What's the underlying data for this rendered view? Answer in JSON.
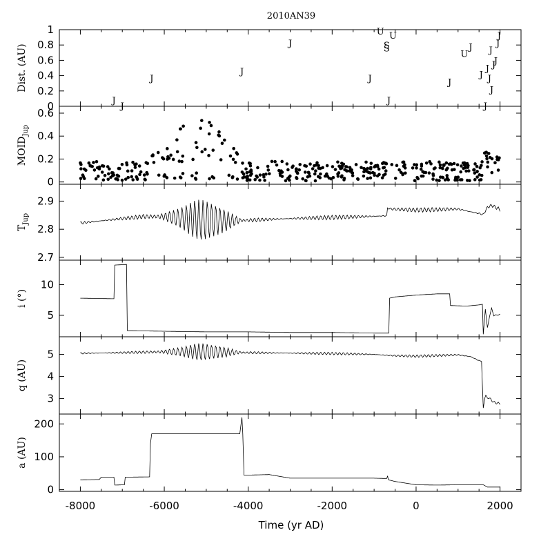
{
  "chart_data": {
    "type": "line",
    "title": "2010AN39",
    "xlabel": "Time (yr AD)",
    "xlim": [
      -8500,
      2500
    ],
    "xticks": [
      -8000,
      -6000,
      -4000,
      -2000,
      0,
      2000
    ],
    "xtick_labels": [
      "-8000",
      "-6000",
      "-4000",
      "-2000",
      "0",
      "2000"
    ],
    "panels": [
      {
        "id": "dist",
        "type": "scatter",
        "ylabel": "Dist. (AU)",
        "ylim": [
          0,
          1
        ],
        "yticks": [
          0,
          0.2,
          0.4,
          0.6,
          0.8,
          1
        ],
        "ytick_labels": [
          "0",
          "0.2",
          "0.4",
          "0.6",
          "0.8",
          "1"
        ],
        "marker_legend": "letter marks planet encountered",
        "points": [
          {
            "x": -7200,
            "y": 0.08,
            "label": "J"
          },
          {
            "x": -7000,
            "y": 0.01,
            "label": "J"
          },
          {
            "x": -6300,
            "y": 0.37,
            "label": "J"
          },
          {
            "x": -4150,
            "y": 0.46,
            "label": "J"
          },
          {
            "x": -3000,
            "y": 0.83,
            "label": "J"
          },
          {
            "x": -1100,
            "y": 0.37,
            "label": "J"
          },
          {
            "x": -850,
            "y": 0.98,
            "label": "U"
          },
          {
            "x": -700,
            "y": 0.8,
            "label": "S"
          },
          {
            "x": -700,
            "y": 0.76,
            "label": "S"
          },
          {
            "x": -550,
            "y": 0.93,
            "label": "U"
          },
          {
            "x": -650,
            "y": 0.08,
            "label": "J"
          },
          {
            "x": 800,
            "y": 0.32,
            "label": "J"
          },
          {
            "x": 1150,
            "y": 0.69,
            "label": "U"
          },
          {
            "x": 1300,
            "y": 0.78,
            "label": "J"
          },
          {
            "x": 1550,
            "y": 0.42,
            "label": "J"
          },
          {
            "x": 1650,
            "y": 0.01,
            "label": "J"
          },
          {
            "x": 1700,
            "y": 0.5,
            "label": "J"
          },
          {
            "x": 1750,
            "y": 0.37,
            "label": "J"
          },
          {
            "x": 1780,
            "y": 0.74,
            "label": "J"
          },
          {
            "x": 1800,
            "y": 0.22,
            "label": "J"
          },
          {
            "x": 1850,
            "y": 0.55,
            "label": "J"
          },
          {
            "x": 1900,
            "y": 0.6,
            "label": "J"
          },
          {
            "x": 1950,
            "y": 0.83,
            "label": "J"
          },
          {
            "x": 1980,
            "y": 0.93,
            "label": "J"
          }
        ]
      },
      {
        "id": "moid",
        "type": "scatter",
        "ylabel": "MOID",
        "ylabel_sub": "Jup",
        "ylim": [
          -0.02,
          0.66
        ],
        "yticks": [
          0,
          0.2,
          0.4,
          0.6
        ],
        "ytick_labels": [
          "0",
          "0.2",
          "0.4",
          "0.6"
        ],
        "x_range": [
          -8000,
          2000
        ],
        "dot_count": 420,
        "seed": 7
      },
      {
        "id": "tjup",
        "type": "line",
        "ylabel": "T",
        "ylabel_sub": "Jup",
        "ylim": [
          2.69,
          2.96
        ],
        "yticks": [
          2.7,
          2.8,
          2.9
        ],
        "ytick_labels": [
          "2.7",
          "2.8",
          "2.9"
        ],
        "x": [
          -8000,
          -7500,
          -7000,
          -6500,
          -6000,
          -5500,
          -5000,
          -4500,
          -4000,
          -3500,
          -3000,
          -2500,
          -2000,
          -1500,
          -1000,
          -700,
          -690,
          -680,
          -600,
          0,
          500,
          1000,
          1300,
          1500,
          1600,
          1700,
          1800,
          2000
        ],
        "y": [
          2.822,
          2.83,
          2.838,
          2.845,
          2.845,
          2.838,
          2.832,
          2.83,
          2.832,
          2.835,
          2.838,
          2.84,
          2.842,
          2.844,
          2.846,
          2.848,
          2.832,
          2.875,
          2.872,
          2.868,
          2.87,
          2.872,
          2.862,
          2.856,
          2.852,
          2.878,
          2.885,
          2.87
        ],
        "oscillation": {
          "center": -5100,
          "width": 1300,
          "amplitude": 0.075,
          "period": 100
        },
        "noise": {
          "amplitude": 0.008,
          "period": 90
        }
      },
      {
        "id": "inc",
        "type": "line",
        "ylabel": "i (°)",
        "ylim": [
          1.5,
          14
        ],
        "yticks": [
          5,
          10
        ],
        "ytick_labels": [
          "5",
          "10"
        ],
        "x": [
          -8000,
          -7200,
          -7180,
          -6900,
          -6880,
          -6000,
          -5000,
          -4000,
          -3000,
          -2000,
          -1000,
          -650,
          -630,
          -500,
          0,
          500,
          800,
          820,
          1200,
          1500,
          1580,
          1600,
          1650,
          1700,
          1750,
          1800,
          1850,
          1900,
          1950,
          2000
        ],
        "y": [
          7.8,
          7.7,
          13.2,
          13.3,
          2.5,
          2.4,
          2.3,
          2.3,
          2.2,
          2.2,
          2.1,
          2.1,
          7.8,
          8.0,
          8.3,
          8.5,
          8.5,
          6.6,
          6.5,
          6.7,
          6.8,
          1.9,
          6.0,
          3.0,
          4.8,
          6.2,
          4.9,
          5.1,
          5.0,
          5.2
        ]
      },
      {
        "id": "q",
        "type": "line",
        "ylabel": "q (AU)",
        "ylim": [
          2.3,
          5.8
        ],
        "yticks": [
          3,
          4,
          5
        ],
        "ytick_labels": [
          "3",
          "4",
          "5"
        ],
        "x": [
          -8000,
          -7000,
          -6000,
          -5000,
          -4000,
          -3000,
          -2000,
          -1000,
          -600,
          0,
          500,
          1000,
          1300,
          1500,
          1560,
          1600,
          1650,
          1700,
          1750,
          1800,
          1900,
          2000
        ],
        "y": [
          5.05,
          5.08,
          5.12,
          5.12,
          5.08,
          5.06,
          5.04,
          5.0,
          4.95,
          4.92,
          4.95,
          4.98,
          4.9,
          4.72,
          4.7,
          2.55,
          3.2,
          3.0,
          3.05,
          2.9,
          2.8,
          2.78
        ],
        "oscillation": {
          "center": -5100,
          "width": 1300,
          "amplitude": 0.4,
          "period": 100
        },
        "noise": {
          "amplitude": 0.06,
          "period": 90
        }
      },
      {
        "id": "a",
        "type": "line",
        "ylabel": "a (AU)",
        "ylim": [
          -5,
          230
        ],
        "yticks": [
          0,
          100,
          200
        ],
        "ytick_labels": [
          "0",
          "100",
          "200"
        ],
        "x": [
          -8000,
          -7550,
          -7500,
          -7200,
          -7180,
          -6950,
          -6930,
          -6350,
          -6330,
          -6300,
          -5000,
          -4200,
          -4150,
          -4130,
          -4100,
          -3500,
          -3000,
          -2000,
          -1000,
          -700,
          -680,
          -660,
          -500,
          0,
          500,
          1000,
          1600,
          1700,
          2000
        ],
        "y": [
          30,
          31,
          38,
          38,
          14,
          15,
          38,
          39,
          140,
          170,
          170,
          170,
          220,
          170,
          44,
          46,
          35,
          35,
          35,
          34,
          42,
          30,
          25,
          15,
          14,
          15,
          15,
          8,
          8
        ]
      }
    ]
  }
}
